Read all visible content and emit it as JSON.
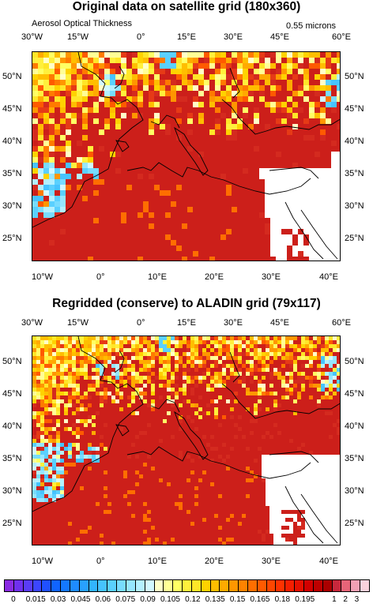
{
  "panel1": {
    "title": "Original data on satellite grid (180x360)",
    "left_label": "Aerosol Optical Thickness",
    "right_label": "0.55 microns",
    "top_ticks": [
      "30°W",
      "15°W",
      "0°",
      "15°E",
      "30°E",
      "45°E",
      "60°E"
    ],
    "bottom_ticks": [
      "10°W",
      "0°",
      "10°E",
      "20°E",
      "30°E",
      "40°E"
    ],
    "left_ticks": [
      "50°N",
      "45°N",
      "40°N",
      "35°N",
      "30°N",
      "25°N"
    ],
    "right_ticks": [
      "50°N",
      "45°N",
      "40°N",
      "35°N",
      "30°N",
      "25°N"
    ]
  },
  "panel2": {
    "title": "Regridded (conserve) to ALADIN grid (79x117)",
    "top_ticks": [
      "30°W",
      "15°W",
      "0°",
      "15°E",
      "30°E",
      "45°E",
      "60°E"
    ],
    "bottom_ticks": [
      "10°W",
      "0°",
      "10°E",
      "20°E",
      "30°E",
      "40°E"
    ],
    "left_ticks": [
      "50°N",
      "45°N",
      "40°N",
      "35°N",
      "30°N",
      "25°N"
    ],
    "right_ticks": [
      "50°N",
      "45°N",
      "40°N",
      "35°N",
      "30°N",
      "25°N"
    ]
  },
  "colorbar": {
    "labels": [
      "0",
      "0.015",
      "0.03",
      "0.045",
      "0.06",
      "0.075",
      "0.09",
      "0.105",
      "0.12",
      "0.135",
      "0.15",
      "0.165",
      "0.18",
      "0.195",
      "1",
      "2",
      "3"
    ],
    "colors": [
      "#8a2be2",
      "#7030ee",
      "#5a3cf6",
      "#3c46ff",
      "#2050ff",
      "#1064ff",
      "#1478ff",
      "#1e8cff",
      "#28a0ff",
      "#32b4ff",
      "#46c3ff",
      "#5ad0ff",
      "#78dcff",
      "#96e6ff",
      "#b4f0ff",
      "#d2f8ff",
      "#ffffc8",
      "#ffff96",
      "#ffff64",
      "#fff03c",
      "#ffe628",
      "#ffd200",
      "#ffbe00",
      "#ffaa00",
      "#ff9600",
      "#ff8200",
      "#ff6e00",
      "#ff5a00",
      "#ff4600",
      "#ff3200",
      "#f51e00",
      "#e60f00",
      "#d20000",
      "#be0000",
      "#aa0000",
      "#c8283c",
      "#e66478",
      "#f0a0b4",
      "#fad2dc"
    ]
  }
}
